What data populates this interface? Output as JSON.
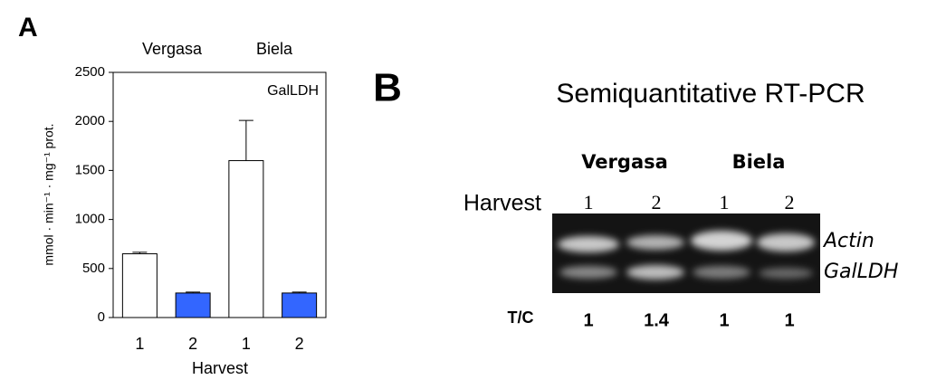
{
  "chart_data": {
    "type": "bar",
    "panel_label": "A",
    "group_labels": [
      "Vergasa",
      "Biela"
    ],
    "annotation": "GalLDH",
    "y_label": "mmol · min⁻¹ · mg⁻¹ prot.",
    "x_label": "Harvest",
    "categories": [
      "1",
      "2",
      "1",
      "2"
    ],
    "values": [
      650,
      250,
      1600,
      250
    ],
    "errors": [
      15,
      10,
      410,
      10
    ],
    "colors": [
      "#ffffff",
      "#3366ff",
      "#ffffff",
      "#3366ff"
    ],
    "ylim": [
      0,
      2500
    ],
    "yticks": [
      0,
      500,
      1000,
      1500,
      2000,
      2500
    ]
  },
  "gel": {
    "panel_label": "B",
    "title": "Semiquantitative RT-PCR",
    "group_labels": [
      "Vergasa",
      "Biela"
    ],
    "row_label": "Harvest",
    "lanes": [
      "1",
      "2",
      "1",
      "2"
    ],
    "bands": [
      "Actin",
      "GalLDH"
    ],
    "ratio_label": "T/C",
    "ratios": [
      1,
      1.4,
      1,
      1
    ]
  }
}
